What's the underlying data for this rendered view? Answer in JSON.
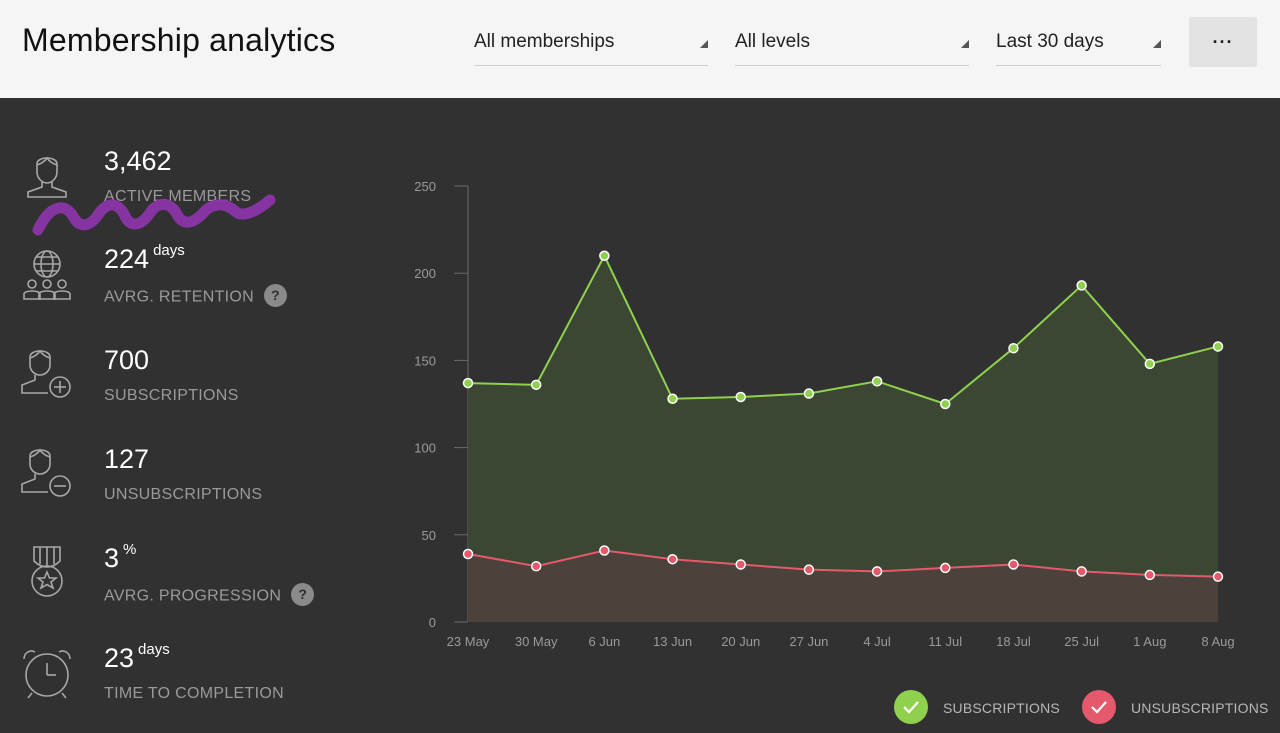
{
  "header": {
    "title": "Membership analytics",
    "filters": {
      "memberships": "All memberships",
      "levels": "All levels",
      "period": "Last 30 days"
    },
    "more_label": "···"
  },
  "metrics": [
    {
      "value": "3,462",
      "unit": "",
      "label": "ACTIVE MEMBERS",
      "icon": "person-icon",
      "help": false
    },
    {
      "value": "224",
      "unit": "days",
      "label": "AVRG. RETENTION",
      "icon": "globe-group-icon",
      "help": true
    },
    {
      "value": "700",
      "unit": "",
      "label": "SUBSCRIPTIONS",
      "icon": "user-add-icon",
      "help": false
    },
    {
      "value": "127",
      "unit": "",
      "label": "UNSUBSCRIPTIONS",
      "icon": "user-remove-icon",
      "help": false
    },
    {
      "value": "3",
      "unit": "%",
      "label": "AVRG. PROGRESSION",
      "icon": "medal-icon",
      "help": true
    },
    {
      "value": "23",
      "unit": "days",
      "label": "TIME TO COMPLETION",
      "icon": "alarm-clock-icon",
      "help": false
    }
  ],
  "help_glyph": "?",
  "colors": {
    "subscriptions": "#8fd14f",
    "unsubscriptions": "#e4596b",
    "scribble": "#8b35a8"
  },
  "chart_data": {
    "type": "line",
    "categories": [
      "23 May",
      "30 May",
      "6 Jun",
      "13 Jun",
      "20 Jun",
      "27 Jun",
      "4 Jul",
      "11 Jul",
      "18 Jul",
      "25 Jul",
      "1 Aug",
      "8 Aug"
    ],
    "series": [
      {
        "name": "SUBSCRIPTIONS",
        "values": [
          137,
          136,
          210,
          128,
          129,
          131,
          138,
          125,
          157,
          193,
          148,
          158
        ]
      },
      {
        "name": "UNSUBSCRIPTIONS",
        "values": [
          39,
          32,
          41,
          36,
          33,
          30,
          29,
          31,
          33,
          29,
          27,
          26
        ]
      }
    ],
    "yticks": [
      0,
      50,
      100,
      150,
      200,
      250
    ],
    "ylim": [
      0,
      250
    ],
    "legend": "bottom-right"
  }
}
